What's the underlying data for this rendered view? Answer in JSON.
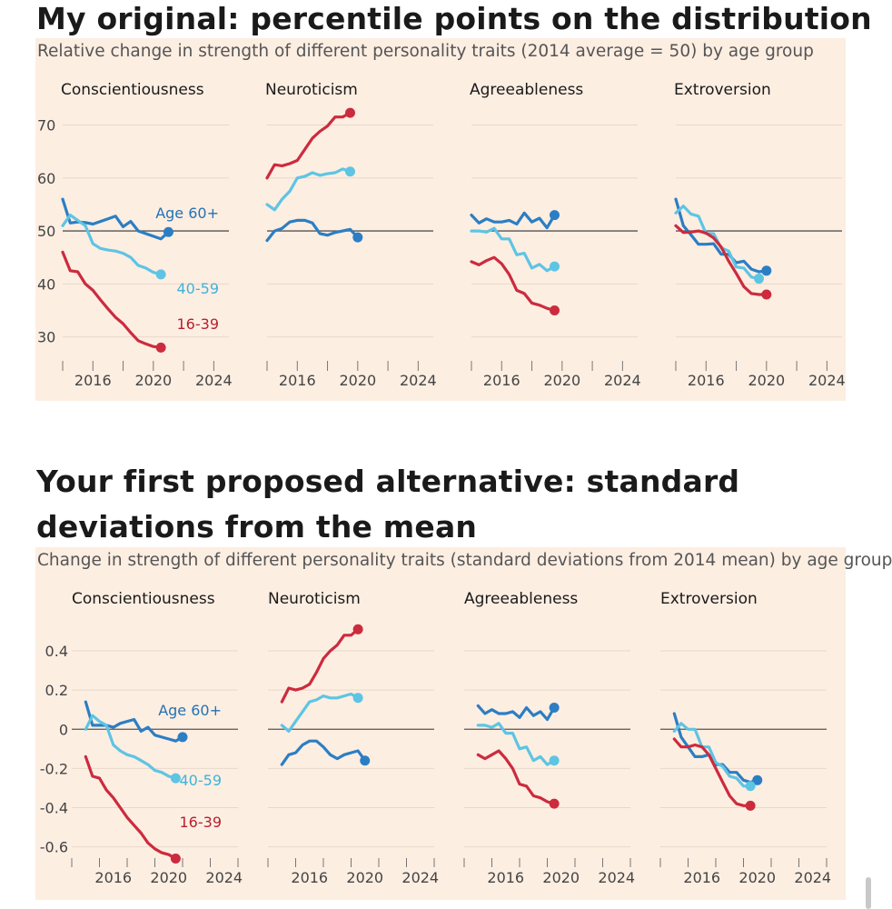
{
  "figure1": {
    "heading": "My original: percentile points on the distribution",
    "chart_data": {
      "type": "line",
      "title": "Relative change in strength of different personality traits (2014 average = 50) by age group",
      "xlabel": "",
      "ylabel": "",
      "xlim": [
        2014,
        2025
      ],
      "ylim": [
        26,
        73
      ],
      "yticks": [
        30,
        40,
        50,
        60,
        70
      ],
      "ytick_labels": [
        "30",
        "40",
        "50",
        "60",
        "70"
      ],
      "xticks": [
        2014,
        2016,
        2018,
        2020,
        2022,
        2024
      ],
      "xtick_labels": [
        "2016",
        "2020",
        "2024"
      ],
      "xtick_label_values": [
        2016,
        2020,
        2024
      ],
      "reference": 50,
      "series_colors": {
        "age_60_plus": "#2b7ec4",
        "age_40_59": "#5ec4e4",
        "age_16_39": "#cc2b3e"
      },
      "series_labels": {
        "age_60_plus": "Age 60+",
        "age_40_59": "40-59",
        "age_16_39": "16-39"
      },
      "x": [
        2014,
        2014.5,
        2015,
        2015.5,
        2016,
        2016.5,
        2017,
        2017.5,
        2018,
        2018.5,
        2019,
        2019.5,
        2020,
        2020.5,
        2021,
        2021.5,
        2022,
        2022.5,
        2023,
        2023.5,
        2024,
        2024.5
      ],
      "panels": [
        {
          "title": "Conscientiousness",
          "series": [
            {
              "name": "age_60_plus",
              "values": [
                56,
                51.5,
                51.7,
                51.6,
                51.3,
                51.8,
                52.3,
                52.8,
                50.8,
                51.8,
                50,
                49.5,
                49,
                48.5,
                49.8
              ]
            },
            {
              "name": "age_40_59",
              "values": [
                51,
                53,
                52,
                51,
                47.6,
                46.7,
                46.4,
                46.2,
                45.8,
                45,
                43.5,
                43,
                42.2,
                41.8
              ]
            },
            {
              "name": "age_16_39",
              "values": [
                46,
                42.5,
                42.3,
                40,
                38.8,
                37,
                35.3,
                33.7,
                32.5,
                30.8,
                29.3,
                28.7,
                28.2,
                28
              ]
            }
          ]
        },
        {
          "title": "Neuroticism",
          "series": [
            {
              "name": "age_60_plus",
              "values": [
                48.2,
                50,
                50.5,
                51.7,
                52,
                52,
                51.5,
                49.5,
                49.2,
                49.7,
                50,
                50.3,
                48.8
              ]
            },
            {
              "name": "age_40_59",
              "values": [
                55,
                54,
                56,
                57.5,
                60,
                60.3,
                61,
                60.5,
                60.8,
                61,
                61.7,
                61.2
              ]
            },
            {
              "name": "age_16_39",
              "values": [
                60,
                62.5,
                62.3,
                62.7,
                63.3,
                65.4,
                67.5,
                68.8,
                69.8,
                71.5,
                71.5,
                72.3
              ]
            }
          ]
        },
        {
          "title": "Agreeableness",
          "series": [
            {
              "name": "age_60_plus",
              "values": [
                53,
                51.5,
                52.3,
                51.7,
                51.7,
                52,
                51.3,
                53.4,
                51.7,
                52.4,
                50.6,
                53
              ]
            },
            {
              "name": "age_40_59",
              "values": [
                50,
                50,
                49.8,
                50.5,
                48.5,
                48.5,
                45.5,
                45.8,
                43,
                43.7,
                42.5,
                43.3
              ]
            },
            {
              "name": "age_16_39",
              "values": [
                44.2,
                43.6,
                44.4,
                45,
                43.8,
                41.8,
                38.8,
                38.2,
                36.4,
                36,
                35.4,
                35
              ]
            }
          ]
        },
        {
          "title": "Extroversion",
          "series": [
            {
              "name": "age_60_plus",
              "values": [
                56,
                51,
                49.3,
                47.5,
                47.5,
                47.6,
                45.6,
                45.6,
                44,
                44.3,
                42.8,
                42.3,
                42.5
              ]
            },
            {
              "name": "age_40_59",
              "values": [
                53.4,
                54.7,
                53.2,
                52.8,
                49.5,
                49.5,
                46.8,
                46.2,
                43.2,
                43,
                41.3,
                41
              ]
            },
            {
              "name": "age_16_39",
              "values": [
                51,
                49.7,
                49.8,
                50,
                49.6,
                48.7,
                47,
                44.3,
                42,
                39.5,
                38.2,
                38,
                38
              ]
            }
          ]
        }
      ]
    }
  },
  "figure2": {
    "heading_line1": "Your first proposed alternative: standard",
    "heading_line2": "deviations from the mean",
    "chart_data": {
      "type": "line",
      "title": "Change in strength of different personality traits (standard deviations from 2014 mean) by age group",
      "xlabel": "",
      "ylabel": "",
      "xlim": [
        2013,
        2025
      ],
      "ylim": [
        -0.69,
        0.53
      ],
      "yticks": [
        -0.6,
        -0.4,
        -0.2,
        0,
        0.2,
        0.4
      ],
      "ytick_labels": [
        "-0.6",
        "-0.4",
        "-0.2",
        "0",
        "0.2",
        "0.4"
      ],
      "xticks": [
        2013,
        2015,
        2017,
        2019,
        2021,
        2023,
        2025
      ],
      "xtick_labels": [
        "2016",
        "2020",
        "2024"
      ],
      "xtick_label_values": [
        2016,
        2020,
        2024
      ],
      "reference": 0,
      "series_colors": {
        "age_60_plus": "#2b7ec4",
        "age_40_59": "#5ec4e4",
        "age_16_39": "#cc2b3e"
      },
      "series_labels": {
        "age_60_plus": "Age 60+",
        "age_40_59": "40-59",
        "age_16_39": "16-39"
      },
      "x": [
        2014,
        2014.5,
        2015,
        2015.5,
        2016,
        2016.5,
        2017,
        2017.5,
        2018,
        2018.5,
        2019,
        2019.5,
        2020,
        2020.5,
        2021,
        2021.5,
        2022,
        2022.5,
        2023,
        2023.5,
        2024,
        2024.5
      ],
      "panels": [
        {
          "title": "Conscientiousness",
          "series": [
            {
              "name": "age_60_plus",
              "values": [
                0.14,
                0.02,
                0.02,
                0.02,
                0.01,
                0.03,
                0.04,
                0.05,
                -0.01,
                0.01,
                -0.03,
                -0.04,
                -0.05,
                -0.06,
                -0.04
              ]
            },
            {
              "name": "age_40_59",
              "values": [
                0,
                0.07,
                0.04,
                0.02,
                -0.08,
                -0.11,
                -0.13,
                -0.14,
                -0.16,
                -0.18,
                -0.21,
                -0.22,
                -0.24,
                -0.25
              ]
            },
            {
              "name": "age_16_39",
              "values": [
                -0.14,
                -0.24,
                -0.25,
                -0.31,
                -0.35,
                -0.4,
                -0.45,
                -0.49,
                -0.53,
                -0.58,
                -0.61,
                -0.63,
                -0.64,
                -0.66
              ]
            }
          ]
        },
        {
          "title": "Neuroticism",
          "series": [
            {
              "name": "age_60_plus",
              "values": [
                -0.18,
                -0.13,
                -0.12,
                -0.08,
                -0.06,
                -0.06,
                -0.09,
                -0.13,
                -0.15,
                -0.13,
                -0.12,
                -0.11,
                -0.16
              ]
            },
            {
              "name": "age_40_59",
              "values": [
                0.02,
                -0.01,
                0.04,
                0.09,
                0.14,
                0.15,
                0.17,
                0.16,
                0.16,
                0.17,
                0.18,
                0.16
              ]
            },
            {
              "name": "age_16_39",
              "values": [
                0.14,
                0.21,
                0.2,
                0.21,
                0.23,
                0.29,
                0.36,
                0.4,
                0.43,
                0.48,
                0.48,
                0.51
              ]
            }
          ]
        },
        {
          "title": "Agreeableness",
          "series": [
            {
              "name": "age_60_plus",
              "values": [
                0.12,
                0.08,
                0.1,
                0.08,
                0.08,
                0.09,
                0.06,
                0.11,
                0.07,
                0.09,
                0.05,
                0.11
              ]
            },
            {
              "name": "age_40_59",
              "values": [
                0.02,
                0.02,
                0.01,
                0.03,
                -0.02,
                -0.02,
                -0.1,
                -0.09,
                -0.16,
                -0.14,
                -0.18,
                -0.16
              ]
            },
            {
              "name": "age_16_39",
              "values": [
                -0.13,
                -0.15,
                -0.13,
                -0.11,
                -0.15,
                -0.2,
                -0.28,
                -0.29,
                -0.34,
                -0.35,
                -0.37,
                -0.38
              ]
            }
          ]
        },
        {
          "title": "Extroversion",
          "series": [
            {
              "name": "age_60_plus",
              "values": [
                0.08,
                -0.04,
                -0.09,
                -0.14,
                -0.14,
                -0.13,
                -0.18,
                -0.18,
                -0.22,
                -0.22,
                -0.26,
                -0.27,
                -0.26
              ]
            },
            {
              "name": "age_40_59",
              "values": [
                -0.01,
                0.03,
                0,
                0,
                -0.09,
                -0.09,
                -0.17,
                -0.19,
                -0.24,
                -0.25,
                -0.29,
                -0.29
              ]
            },
            {
              "name": "age_16_39",
              "values": [
                -0.05,
                -0.09,
                -0.09,
                -0.08,
                -0.09,
                -0.13,
                -0.2,
                -0.27,
                -0.34,
                -0.38,
                -0.39,
                -0.39
              ]
            }
          ]
        }
      ]
    }
  }
}
